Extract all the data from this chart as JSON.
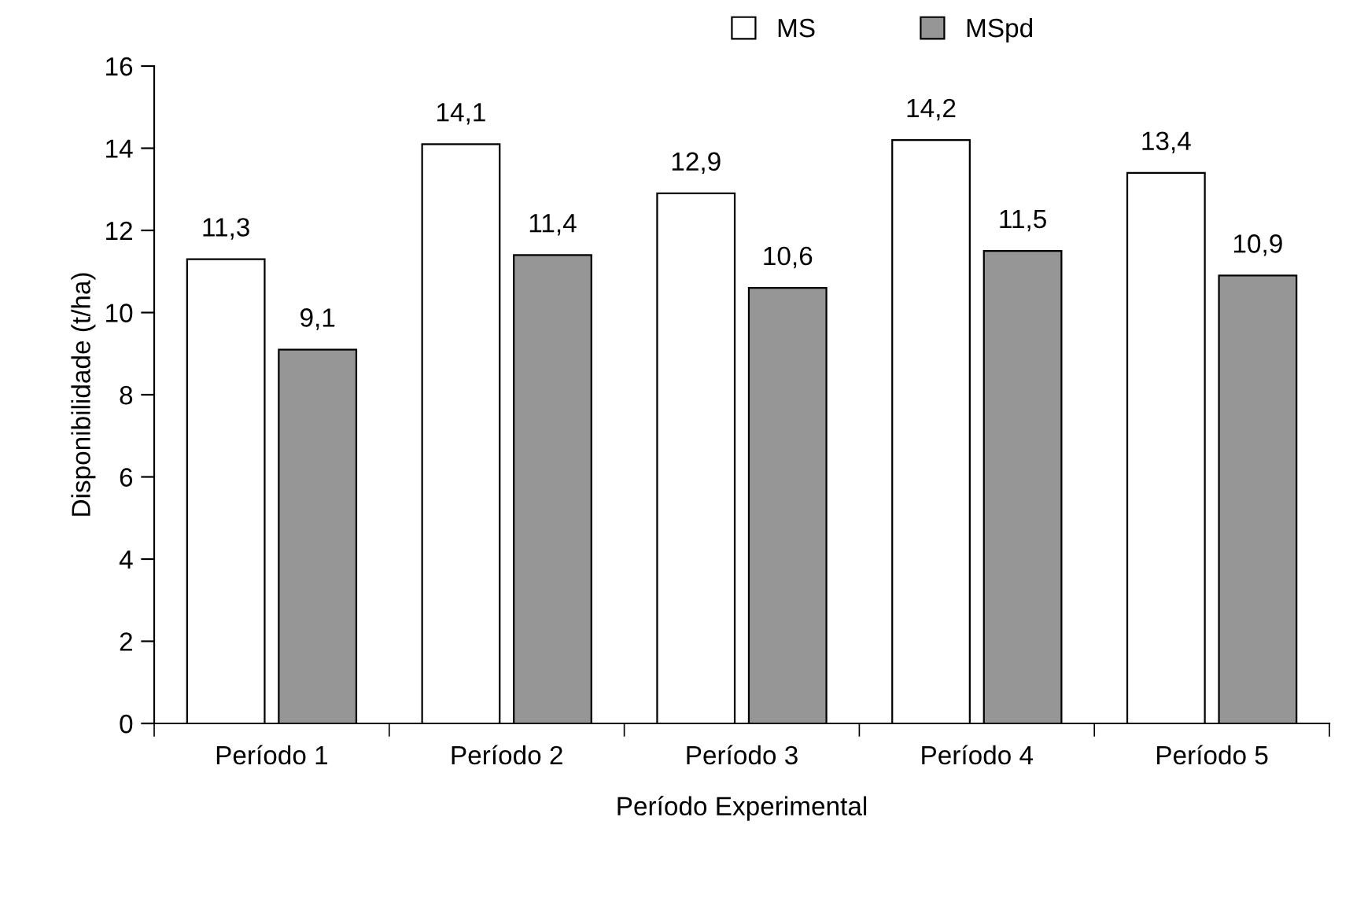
{
  "chart_data": {
    "type": "bar",
    "xlabel": "Período Experimental",
    "ylabel": "Disponibilidade (t/ha)",
    "categories": [
      "Período 1",
      "Período 2",
      "Período 3",
      "Período 4",
      "Período 5"
    ],
    "series": [
      {
        "name": "MS",
        "color": "#ffffff",
        "values": [
          11.3,
          14.1,
          12.9,
          14.2,
          13.4
        ],
        "value_labels": [
          "11,3",
          "14,1",
          "12,9",
          "14,2",
          "13,4"
        ]
      },
      {
        "name": "MSpd",
        "color": "#969696",
        "values": [
          9.1,
          11.4,
          10.6,
          11.5,
          10.9
        ],
        "value_labels": [
          "9,1",
          "11,4",
          "10,6",
          "11,5",
          "10,9"
        ]
      }
    ],
    "ylim": [
      0,
      16
    ],
    "yticks": [
      0,
      2,
      4,
      6,
      8,
      10,
      12,
      14,
      16
    ],
    "grid": false,
    "legend": "top"
  }
}
